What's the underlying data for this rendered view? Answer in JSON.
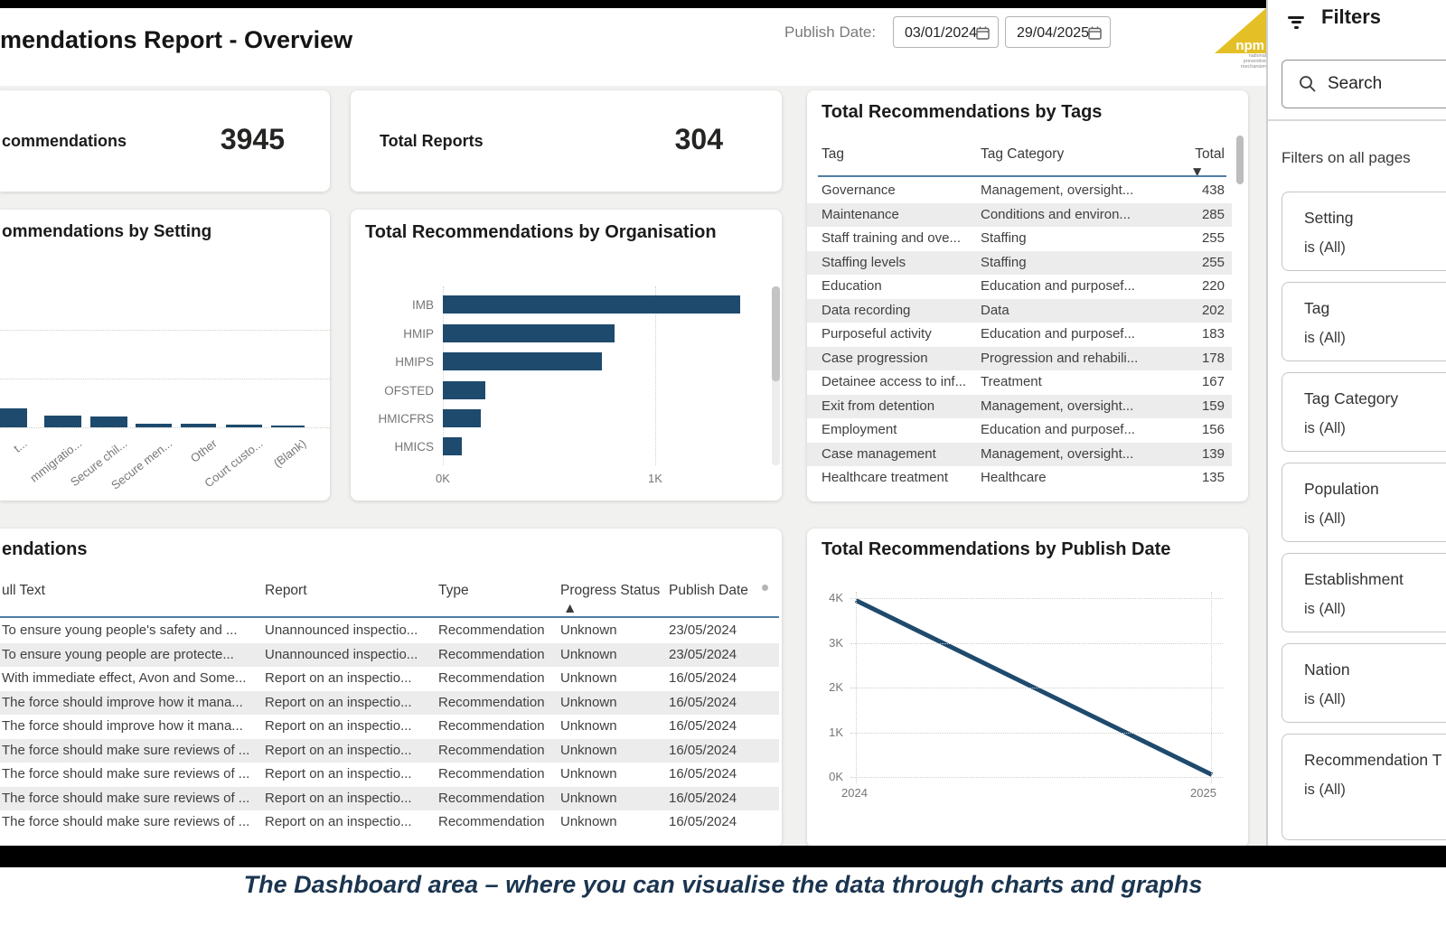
{
  "header": {
    "title": "mendations Report - Overview",
    "publish_date_label": "Publish Date:",
    "date_from": "03/01/2024",
    "date_to": "29/04/2025",
    "logo": {
      "text": "npm",
      "caption_lines": [
        "national",
        "preventive",
        "mechanism"
      ],
      "color": "#e4c026"
    }
  },
  "cards": {
    "recommendations": {
      "label": "commendations",
      "value": "3945"
    },
    "reports": {
      "label": "Total Reports",
      "value": "304"
    }
  },
  "tags_table": {
    "title": "Total Recommendations by Tags",
    "columns": [
      "Tag",
      "Tag Category",
      "Total"
    ],
    "rows": [
      [
        "Governance",
        "Management, oversight...",
        "438"
      ],
      [
        "Maintenance",
        "Conditions and environ...",
        "285"
      ],
      [
        "Staff training and ove...",
        "Staffing",
        "255"
      ],
      [
        "Staffing levels",
        "Staffing",
        "255"
      ],
      [
        "Education",
        "Education and purposef...",
        "220"
      ],
      [
        "Data recording",
        "Data",
        "202"
      ],
      [
        "Purposeful activity",
        "Education and purposef...",
        "183"
      ],
      [
        "Case progression",
        "Progression and rehabili...",
        "178"
      ],
      [
        "Detainee access to inf...",
        "Treatment",
        "167"
      ],
      [
        "Exit from detention",
        "Management, oversight...",
        "159"
      ],
      [
        "Employment",
        "Education and purposef...",
        "156"
      ],
      [
        "Case management",
        "Management, oversight...",
        "139"
      ],
      [
        "Healthcare treatment",
        "Healthcare",
        "135"
      ]
    ]
  },
  "recs_table": {
    "title": "endations",
    "columns": [
      "ull Text",
      "Report",
      "Type",
      "Progress Status",
      "Publish Date"
    ],
    "rows": [
      [
        "To ensure young people's safety and ...",
        "Unannounced inspectio...",
        "Recommendation",
        "Unknown",
        "23/05/2024"
      ],
      [
        "To ensure young people are protecte...",
        "Unannounced inspectio...",
        "Recommendation",
        "Unknown",
        "23/05/2024"
      ],
      [
        "With immediate effect, Avon and Some...",
        "Report on an inspectio...",
        "Recommendation",
        "Unknown",
        "16/05/2024"
      ],
      [
        "The force should improve how it mana...",
        "Report on an inspectio...",
        "Recommendation",
        "Unknown",
        "16/05/2024"
      ],
      [
        "The force should improve how it mana...",
        "Report on an inspectio...",
        "Recommendation",
        "Unknown",
        "16/05/2024"
      ],
      [
        "The force should make sure reviews of ...",
        "Report on an inspectio...",
        "Recommendation",
        "Unknown",
        "16/05/2024"
      ],
      [
        "The force should make sure reviews of ...",
        "Report on an inspectio...",
        "Recommendation",
        "Unknown",
        "16/05/2024"
      ],
      [
        "The force should make sure reviews of ...",
        "Report on an inspectio...",
        "Recommendation",
        "Unknown",
        "16/05/2024"
      ],
      [
        "The force should make sure reviews of ...",
        "Report on an inspectio...",
        "Recommendation",
        "Unknown",
        "16/05/2024"
      ]
    ]
  },
  "chart_data": [
    {
      "id": "setting",
      "type": "bar",
      "title": "ommendations by Setting",
      "categories": [
        "t...",
        "mmigratio...",
        "Secure chil...",
        "Secure men...",
        "Other",
        "Court custo...",
        "(Blank)"
      ],
      "values": [
        385,
        240,
        220,
        75,
        73,
        55,
        25
      ],
      "ylim": [
        0,
        3000
      ],
      "grid": "dotted-horizontal",
      "bar_color": "#1e4a6d"
    },
    {
      "id": "organisation",
      "type": "bar",
      "orientation": "horizontal",
      "title": "Total Recommendations by Organisation",
      "categories": [
        "IMB",
        "HMIP",
        "HMIPS",
        "OFSTED",
        "HMICFRS",
        "HMICS"
      ],
      "values": [
        1400,
        810,
        750,
        200,
        180,
        90
      ],
      "xticks": [
        "0K",
        "1K"
      ],
      "xlim": [
        0,
        1500
      ],
      "grid": "dotted-vertical",
      "bar_color": "#1e4a6d"
    },
    {
      "id": "publish_date",
      "type": "line",
      "title": "Total Recommendations by Publish Date",
      "x": [
        "2024",
        "2025"
      ],
      "values": [
        3950,
        50
      ],
      "yticks": [
        "0K",
        "1K",
        "2K",
        "3K",
        "4K"
      ],
      "ylim": [
        0,
        4000
      ],
      "grid": "dotted",
      "line_color": "#1e4a6d"
    }
  ],
  "filters": {
    "title": "Filters",
    "search_placeholder": "Search",
    "section_label": "Filters on all pages",
    "items": [
      {
        "name": "Setting",
        "value": "is (All)"
      },
      {
        "name": "Tag",
        "value": "is (All)"
      },
      {
        "name": "Tag Category",
        "value": "is (All)"
      },
      {
        "name": "Population",
        "value": "is (All)"
      },
      {
        "name": "Establishment",
        "value": "is (All)"
      },
      {
        "name": "Nation",
        "value": "is (All)"
      },
      {
        "name": "Recommendation T",
        "value": "is (All)"
      }
    ]
  },
  "caption": "The Dashboard area – where you can visualise the data through charts and graphs",
  "colors": {
    "accent_navy": "#1e4a6d",
    "caption_navy": "#1b3550",
    "canvas_gray": "#f1f1ef",
    "header_underline": "#4e7ea6",
    "logo_yellow": "#e4c026"
  }
}
